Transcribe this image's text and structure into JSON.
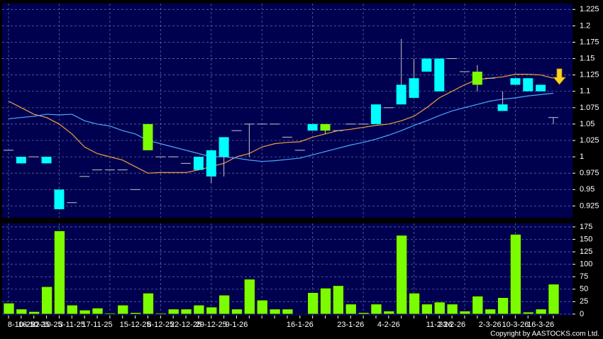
{
  "chart_data": [
    {
      "type": "candlestick",
      "open": [
        1.01,
        1.0,
        1.0,
        1.0,
        0.95,
        0.93,
        0.97,
        0.98,
        0.98,
        0.98,
        0.95,
        1.01,
        1.0,
        1.0,
        0.99,
        1.0,
        1.01,
        1.03,
        1.04,
        1.05,
        1.05,
        1.05,
        1.03,
        1.01,
        1.05,
        1.04,
        1.04,
        1.05,
        1.05,
        1.08,
        1.075,
        1.11,
        1.12,
        1.15,
        1.15,
        1.15,
        1.13,
        1.11,
        1.12,
        1.08,
        1.12,
        1.12,
        1.11,
        1.06
      ],
      "high": [
        1.01,
        1.0,
        1.0,
        1.0,
        0.95,
        0.93,
        0.97,
        0.98,
        0.98,
        0.98,
        0.95,
        1.05,
        1.0,
        1.0,
        0.99,
        1.0,
        1.01,
        1.03,
        1.04,
        1.05,
        1.05,
        1.05,
        1.03,
        1.01,
        1.05,
        1.05,
        1.04,
        1.05,
        1.05,
        1.08,
        1.075,
        1.18,
        1.15,
        1.15,
        1.15,
        1.15,
        1.13,
        1.14,
        1.12,
        1.1,
        1.12,
        1.12,
        1.11,
        1.06
      ],
      "low": [
        1.01,
        0.99,
        1.0,
        0.99,
        0.92,
        0.93,
        0.97,
        0.98,
        0.98,
        0.98,
        0.95,
        1.01,
        1.0,
        1.0,
        0.99,
        0.98,
        0.96,
        0.97,
        1.04,
        1.0,
        1.05,
        1.05,
        1.03,
        1.01,
        1.04,
        1.035,
        1.04,
        1.05,
        1.05,
        1.05,
        1.075,
        1.08,
        1.09,
        1.13,
        1.1,
        1.15,
        1.13,
        1.1,
        1.12,
        1.07,
        1.11,
        1.1,
        1.1,
        1.05
      ],
      "close": [
        1.01,
        0.99,
        1.0,
        0.99,
        0.92,
        0.93,
        0.97,
        0.98,
        0.98,
        0.98,
        0.95,
        1.05,
        1.0,
        1.0,
        0.99,
        0.98,
        0.97,
        1.0,
        1.04,
        1.05,
        1.05,
        1.05,
        1.03,
        1.01,
        1.04,
        1.05,
        1.04,
        1.05,
        1.05,
        1.05,
        1.075,
        1.08,
        1.09,
        1.13,
        1.1,
        1.15,
        1.13,
        1.13,
        1.12,
        1.07,
        1.11,
        1.1,
        1.1,
        1.06
      ],
      "up_color": "#7cfc00",
      "down_color": "#00ffff",
      "flat_color": "#c8c8c8",
      "overlays": [
        {
          "color": "#f0a040",
          "values": [
            1.085,
            1.075,
            1.065,
            1.06,
            1.05,
            1.035,
            1.015,
            1.005,
            1.0,
            0.995,
            0.985,
            0.975,
            0.976,
            0.976,
            0.976,
            0.98,
            0.985,
            0.99,
            1.0,
            1.005,
            1.015,
            1.02,
            1.022,
            1.023,
            1.03,
            1.035,
            1.04,
            1.042,
            1.045,
            1.048,
            1.05,
            1.055,
            1.062,
            1.075,
            1.09,
            1.1,
            1.11,
            1.118,
            1.12,
            1.122,
            1.126,
            1.126,
            1.125,
            1.12
          ]
        },
        {
          "color": "#4aa8ff",
          "values": [
            1.058,
            1.06,
            1.062,
            1.065,
            1.064,
            1.065,
            1.055,
            1.05,
            1.047,
            1.04,
            1.035,
            1.025,
            1.02,
            1.015,
            1.01,
            1.005,
            1.0,
            1.0,
            0.998,
            0.995,
            0.993,
            0.994,
            0.996,
            0.998,
            1.003,
            1.008,
            1.013,
            1.018,
            1.022,
            1.027,
            1.033,
            1.04,
            1.048,
            1.055,
            1.063,
            1.07,
            1.075,
            1.08,
            1.085,
            1.088,
            1.09,
            1.093,
            1.095,
            1.097
          ]
        }
      ],
      "ylim": [
        0.907,
        1.234
      ],
      "yticks": [
        0.925,
        0.95,
        0.975,
        1,
        1.025,
        1.05,
        1.075,
        1.1,
        1.125,
        1.15,
        1.175,
        1.2,
        1.225
      ],
      "grid": true
    },
    {
      "type": "bar",
      "categories": [
        null,
        "8-10-25",
        "16-10-25",
        "22-10-25",
        null,
        "3-11-25",
        null,
        "17-11-25",
        null,
        null,
        "15-12-25",
        null,
        "8-12-25",
        null,
        "22-12-25",
        null,
        "29-12-25",
        null,
        "9-1-26",
        null,
        null,
        null,
        null,
        "16-1-26",
        null,
        null,
        null,
        "23-1-26",
        null,
        null,
        "4-2-26",
        null,
        null,
        null,
        "11-2-26",
        "23-2-26",
        null,
        null,
        "2-3-26",
        null,
        "10-3-26",
        null,
        "16-3-26",
        null
      ],
      "values": [
        22,
        10,
        5,
        55,
        167,
        18,
        8,
        12,
        2,
        18,
        3,
        42,
        2,
        10,
        10,
        18,
        14,
        38,
        10,
        70,
        28,
        10,
        10,
        1,
        43,
        52,
        57,
        20,
        3,
        20,
        6,
        158,
        42,
        20,
        24,
        20,
        6,
        36,
        10,
        33,
        160,
        4,
        10,
        60
      ],
      "color": "#7cfc00",
      "ylim": [
        -3,
        182
      ],
      "yticks": [
        0,
        25,
        50,
        75,
        100,
        125,
        150,
        175
      ],
      "grid": true,
      "footer": "Copyright by AASTOCKS.com Ltd."
    }
  ]
}
